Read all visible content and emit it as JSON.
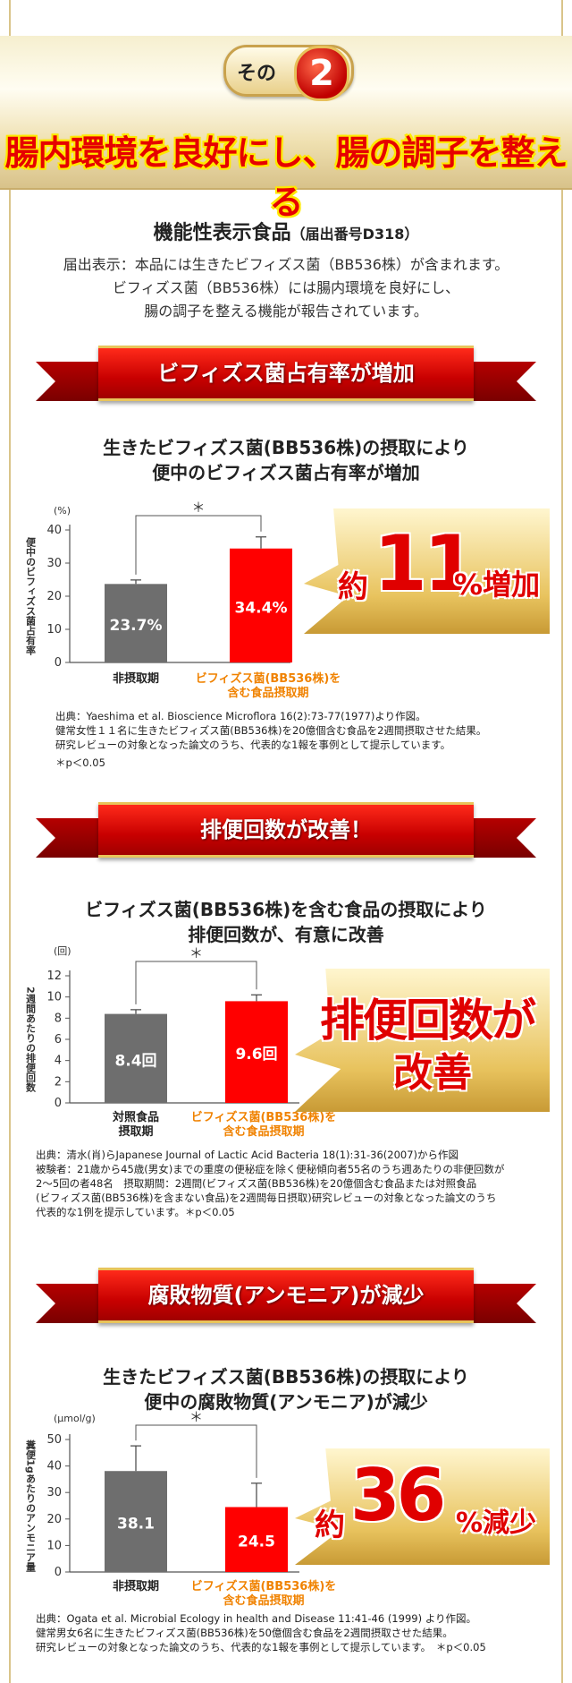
{
  "hero": {
    "badge_label": "その",
    "badge_number": "2",
    "title": "腸内環境を良好にし、腸の調子を整える"
  },
  "intro": {
    "title": "機能性表示食品",
    "title_note": "（届出番号D318）",
    "lines": [
      "届出表示：本品には生きたビフィズス菌（BB536株）が含まれます。",
      "ビフィズス菌（BB536株）には腸内環境を良好にし、",
      "腸の調子を整える機能が報告されています。"
    ]
  },
  "sections": [
    {
      "ribbon": "ビフィズス菌占有率が増加",
      "title_lines": [
        "生きたビフィズス菌(BB536株)の摂取により",
        "便中のビフィズス菌占有率が増加"
      ],
      "callout": {
        "prefix": "約",
        "number": "11",
        "suffix": "%増加"
      },
      "source_lines": [
        "出典：Yaeshima et al. Bioscience Microflora 16(2):73-77(1977)より作図。",
        "健常女性１１名に生きたビフィズス菌(BB536株)を20億個含む食品を2週間摂取させた結果。",
        "研究レビューの対象となった論文のうち、代表的な1報を事例として提示しています。",
        "＊p＜0.05"
      ]
    },
    {
      "ribbon": "排便回数が改善！",
      "title_lines": [
        "ビフィズス菌(BB536株)を含む食品の摂取により",
        "排便回数が、有意に改善"
      ],
      "callout": {
        "line1": "排便回数が",
        "line2": "改善"
      },
      "source_lines": [
        "出典：清水(肖)らJapanese Journal of Lactic Acid Bacteria 18(1):31-36(2007)から作図",
        "被験者：21歳から45歳(男女)までの重度の便秘症を除く便秘傾向者55名のうち週あたりの非便回数が",
        "2～5回の者48名　摂取期間：2週間(ビフィズス菌(BB536株)を20億個含む食品または対照食品",
        "(ビフィズス菌(BB536株)を含まない食品)を2週間毎日摂取)研究レビューの対象となった論文のうち",
        "代表的な1例を提示しています。＊p＜0.05"
      ]
    },
    {
      "ribbon": "腐敗物質(アンモニア)が減少",
      "title_lines": [
        "生きたビフィズス菌(BB536株)の摂取により",
        "便中の腐敗物質(アンモニア)が減少"
      ],
      "callout": {
        "prefix": "約",
        "number": "36",
        "suffix": "%減少"
      },
      "source_lines": [
        "出典：Ogata et al. Microbial Ecology in health and Disease 11:41-46 (1999) より作図。",
        "健常男女6名に生きたビフィズス菌(BB536株)を50億個含む食品を2週間摂取させた結果。",
        "研究レビューの対象となった論文のうち、代表的な1報を事例として提示しています。　＊p＜0.05"
      ]
    }
  ],
  "colors": {
    "red": "#ff0000",
    "gray": "#6e6e6e",
    "orange": "#f08200",
    "gold": "#e9c96a"
  },
  "chart_data": [
    {
      "type": "bar",
      "unit": "(%)",
      "ylabel": "便中のビフィズス菌占有率",
      "ylim": [
        0,
        40
      ],
      "yticks": [
        0,
        10,
        20,
        30,
        40
      ],
      "categories": [
        "非摂取期",
        "ビフィズス菌(BB536株)を含む食品摂取期"
      ],
      "category_lines": [
        [
          "非摂取期"
        ],
        [
          "ビフィズス菌(BB536株)を",
          "含む食品摂取期"
        ]
      ],
      "values": [
        23.7,
        34.4
      ],
      "errors": [
        1.2,
        3.5
      ],
      "value_labels": [
        "23.7%",
        "34.4%"
      ],
      "bar_colors": [
        "#6e6e6e",
        "#ff0000"
      ],
      "label_colors": [
        "#222222",
        "#f08200"
      ],
      "significance": "＊"
    },
    {
      "type": "bar",
      "unit": "(回)",
      "ylabel": "2週間あたりの排便回数",
      "ylim": [
        0,
        12
      ],
      "yticks": [
        0,
        2,
        4,
        6,
        8,
        10,
        12
      ],
      "categories": [
        "対照食品摂取期",
        "ビフィズス菌(BB536株)を含む食品摂取期"
      ],
      "category_lines": [
        [
          "対照食品",
          "摂取期"
        ],
        [
          "ビフィズス菌(BB536株)を",
          "含む食品摂取期"
        ]
      ],
      "values": [
        8.4,
        9.6
      ],
      "errors": [
        0.4,
        0.6
      ],
      "value_labels": [
        "8.4回",
        "9.6回"
      ],
      "bar_colors": [
        "#6e6e6e",
        "#ff0000"
      ],
      "label_colors": [
        "#222222",
        "#f08200"
      ],
      "significance": "＊"
    },
    {
      "type": "bar",
      "unit": "(μmol/g)",
      "ylabel": "糞便1gあたりのアンモニア量",
      "ylim": [
        0,
        50
      ],
      "yticks": [
        0,
        10,
        20,
        30,
        40,
        50
      ],
      "categories": [
        "非摂取期",
        "ビフィズス菌(BB536株)を含む食品摂取期"
      ],
      "category_lines": [
        [
          "非摂取期"
        ],
        [
          "ビフィズス菌(BB536株)を",
          "含む食品摂取期"
        ]
      ],
      "values": [
        38.1,
        24.5
      ],
      "errors": [
        9.5,
        9.0
      ],
      "value_labels": [
        "38.1",
        "24.5"
      ],
      "bar_colors": [
        "#6e6e6e",
        "#ff0000"
      ],
      "label_colors": [
        "#222222",
        "#f08200"
      ],
      "significance": "＊"
    }
  ]
}
